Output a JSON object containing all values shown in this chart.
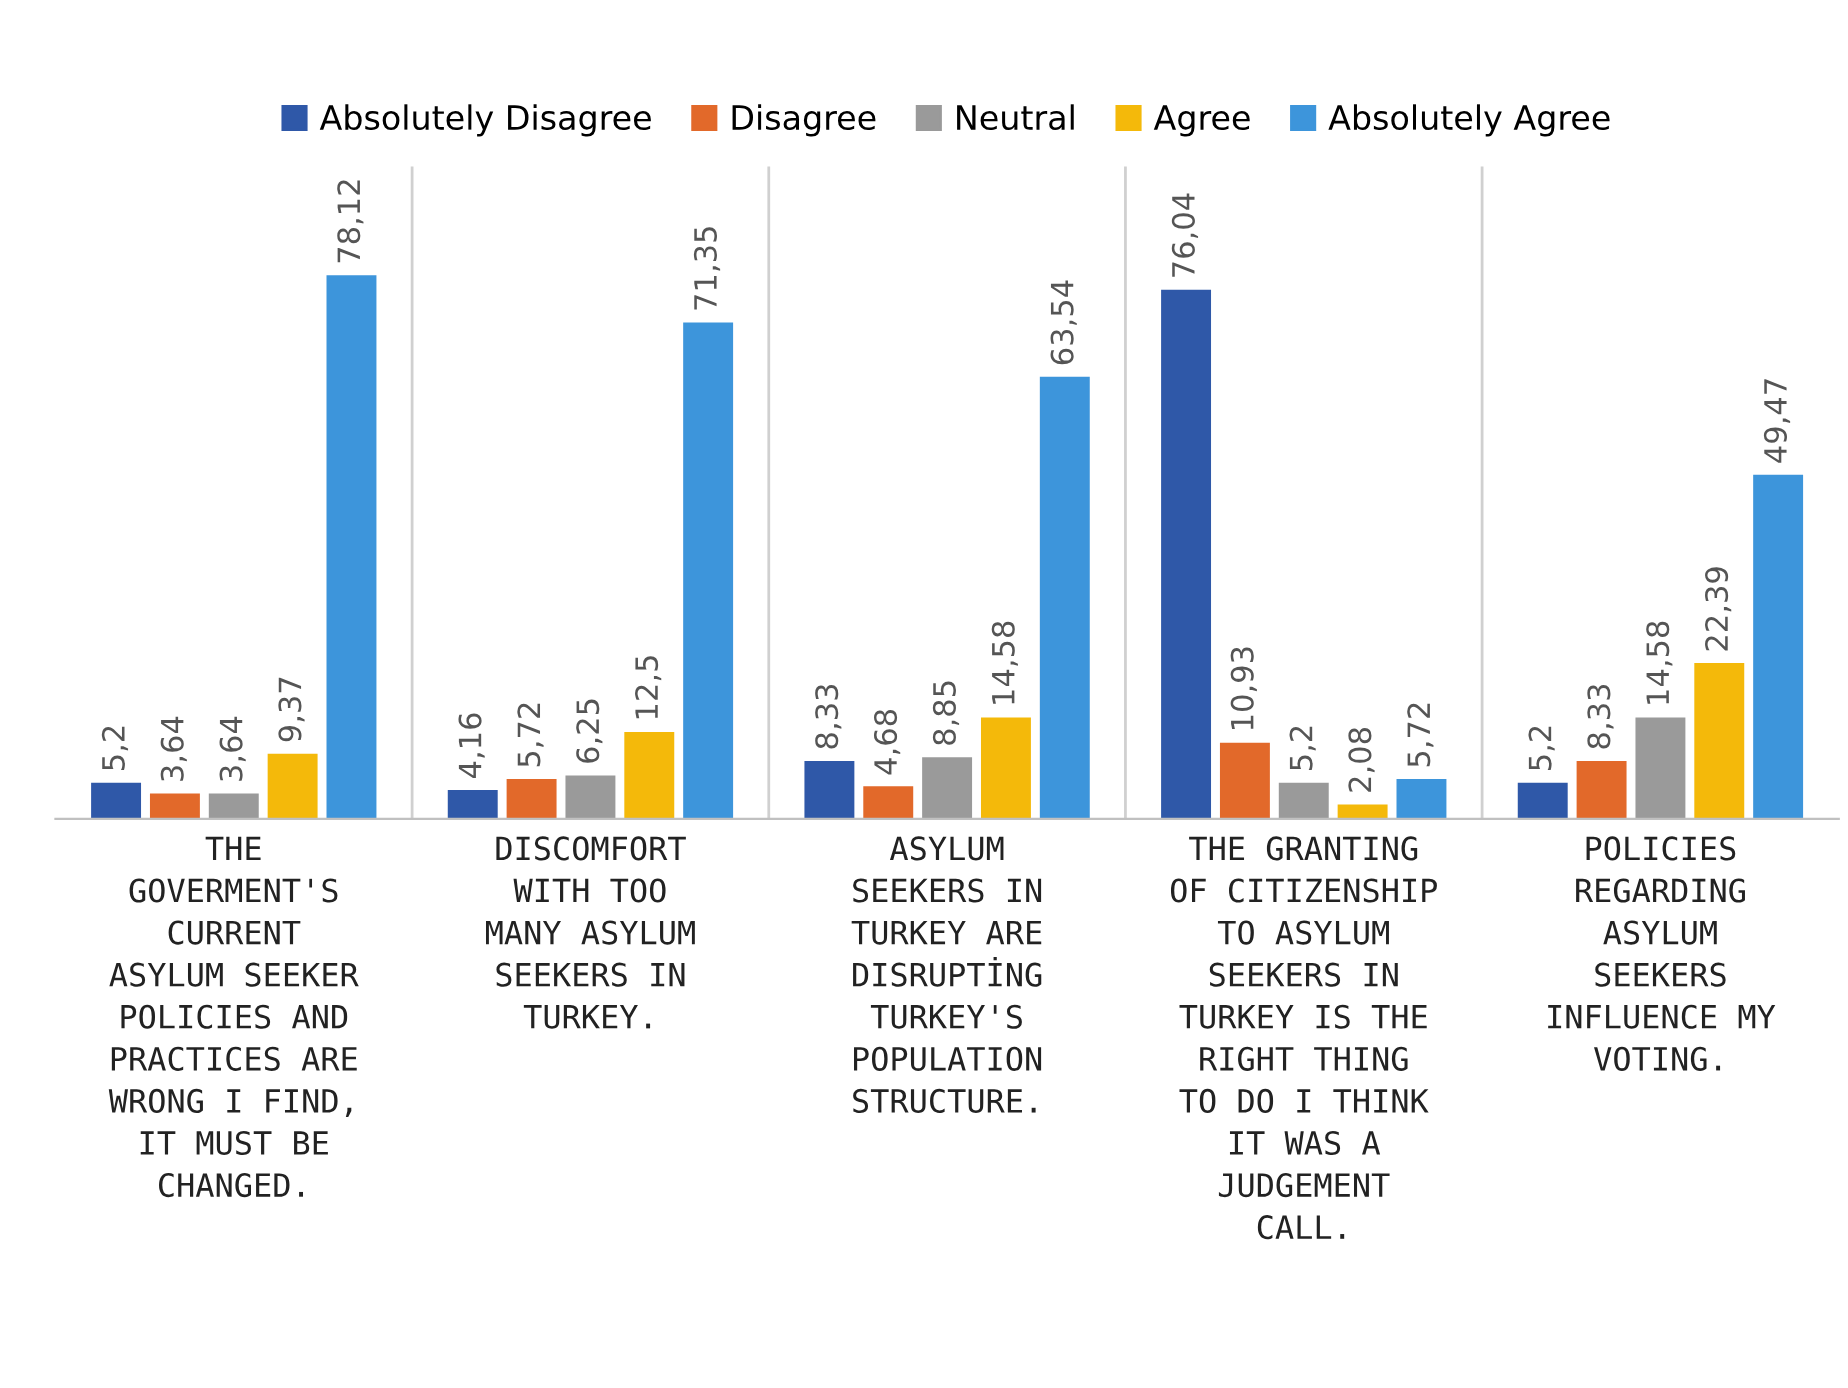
{
  "chart_data": {
    "type": "bar",
    "categories": [
      "THE\nGOVERMENT'S\nCURRENT\nASYLUM SEEKER\nPOLICIES AND\nPRACTICES ARE\nWRONG I FIND,\nIT MUST BE\nCHANGED.",
      "DISCOMFORT\nWITH TOO\nMANY ASYLUM\nSEEKERS IN\nTURKEY.",
      "ASYLUM\nSEEKERS IN\nTURKEY ARE\nDISRUPTİNG\nTURKEY'S\nPOPULATION\nSTRUCTURE.",
      "THE GRANTING\nOF CITIZENSHIP\nTO ASYLUM\nSEEKERS IN\nTURKEY IS THE\nRIGHT THING\nTO DO I THINK\nIT WAS A\nJUDGEMENT\nCALL.",
      "POLICIES\nREGARDING\nASYLUM\nSEEKERS\nINFLUENCE MY\nVOTING."
    ],
    "series": [
      {
        "name": "Absolutely Disagree",
        "color": "#2f58a8",
        "values": [
          5.2,
          4.16,
          8.33,
          76.04,
          5.2
        ],
        "value_labels": [
          "5,2",
          "4,16",
          "8,33",
          "76,04",
          "5,2"
        ]
      },
      {
        "name": "Disagree",
        "color": "#e2692a",
        "values": [
          3.64,
          5.72,
          4.68,
          10.93,
          8.33
        ],
        "value_labels": [
          "3,64",
          "5,72",
          "4,68",
          "10,93",
          "8,33"
        ]
      },
      {
        "name": "Neutral",
        "color": "#9a9a9a",
        "values": [
          3.64,
          6.25,
          8.85,
          5.2,
          14.58
        ],
        "value_labels": [
          "3,64",
          "6,25",
          "8,85",
          "5,2",
          "14,58"
        ]
      },
      {
        "name": "Agree",
        "color": "#f4b90a",
        "values": [
          9.37,
          12.5,
          14.58,
          2.08,
          22.39
        ],
        "value_labels": [
          "9,37",
          "12,5",
          "14,58",
          "2,08",
          "22,39"
        ]
      },
      {
        "name": "Absolutely Agree",
        "color": "#3d95db",
        "values": [
          78.12,
          71.35,
          63.54,
          5.72,
          49.47
        ],
        "value_labels": [
          "78,12",
          "71,35",
          "63,54",
          "5,72",
          "49,47"
        ]
      }
    ],
    "legend": "top",
    "grid": "x"
  }
}
